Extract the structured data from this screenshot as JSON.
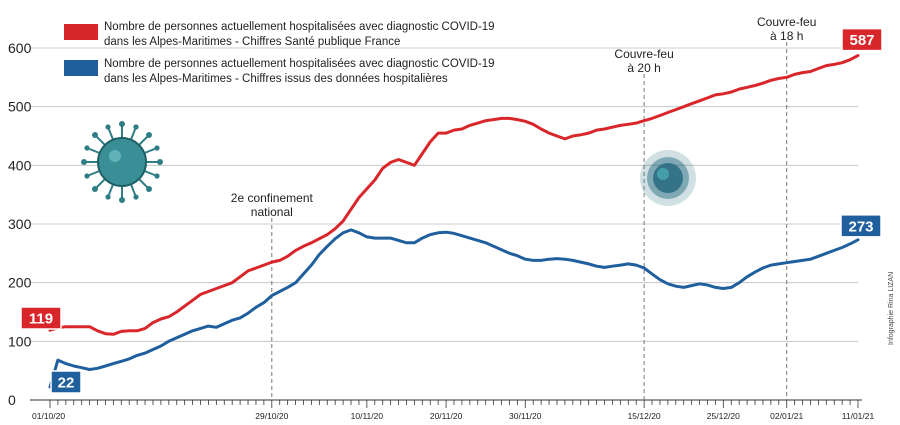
{
  "chart_data": {
    "type": "line",
    "title": "",
    "xlabel": "",
    "ylabel": "",
    "ylim": [
      0,
      600
    ],
    "yticks": [
      0,
      100,
      200,
      300,
      400,
      500,
      600
    ],
    "x": [
      "01/10/20",
      "02/10/20",
      "03/10/20",
      "04/10/20",
      "05/10/20",
      "06/10/20",
      "07/10/20",
      "08/10/20",
      "09/10/20",
      "10/10/20",
      "11/10/20",
      "12/10/20",
      "13/10/20",
      "14/10/20",
      "15/10/20",
      "16/10/20",
      "17/10/20",
      "18/10/20",
      "19/10/20",
      "20/10/20",
      "21/10/20",
      "22/10/20",
      "23/10/20",
      "24/10/20",
      "25/10/20",
      "26/10/20",
      "27/10/20",
      "28/10/20",
      "29/10/20",
      "30/10/20",
      "31/10/20",
      "01/11/20",
      "02/11/20",
      "03/11/20",
      "04/11/20",
      "05/11/20",
      "06/11/20",
      "07/11/20",
      "08/11/20",
      "09/11/20",
      "10/11/20",
      "11/11/20",
      "12/11/20",
      "13/11/20",
      "14/11/20",
      "15/11/20",
      "16/11/20",
      "17/11/20",
      "18/11/20",
      "19/11/20",
      "20/11/20",
      "21/11/20",
      "22/11/20",
      "23/11/20",
      "24/11/20",
      "25/11/20",
      "26/11/20",
      "27/11/20",
      "28/11/20",
      "29/11/20",
      "30/11/20",
      "01/12/20",
      "02/12/20",
      "03/12/20",
      "04/12/20",
      "05/12/20",
      "06/12/20",
      "07/12/20",
      "08/12/20",
      "09/12/20",
      "10/12/20",
      "11/12/20",
      "12/12/20",
      "13/12/20",
      "14/12/20",
      "15/12/20",
      "16/12/20",
      "17/12/20",
      "18/12/20",
      "19/12/20",
      "20/12/20",
      "21/12/20",
      "22/12/20",
      "23/12/20",
      "24/12/20",
      "25/12/20",
      "26/12/20",
      "27/12/20",
      "28/12/20",
      "29/12/20",
      "30/12/20",
      "31/12/20",
      "01/01/21",
      "02/01/21",
      "03/01/21",
      "04/01/21",
      "05/01/21",
      "06/01/21",
      "07/01/21",
      "08/01/21",
      "09/01/21",
      "10/01/21",
      "11/01/21"
    ],
    "xtick_labels": [
      "01/10/20",
      "29/10/20",
      "10/11/20",
      "20/11/20",
      "30/11/20",
      "15/12/20",
      "25/12/20",
      "02/01/21",
      "11/01/21"
    ],
    "series": [
      {
        "name": "Nombre de personnes actuellement hospitalisées avec diagnostic COVID-19 dans les Alpes-Maritimes - Chiffres Santé publique France",
        "color": "#d9262b",
        "values": [
          119,
          123,
          125,
          125,
          125,
          125,
          118,
          113,
          112,
          117,
          118,
          118,
          122,
          132,
          138,
          142,
          150,
          160,
          170,
          180,
          185,
          190,
          195,
          200,
          210,
          220,
          225,
          230,
          235,
          238,
          245,
          255,
          262,
          268,
          275,
          282,
          292,
          305,
          325,
          345,
          360,
          375,
          395,
          405,
          410,
          405,
          400,
          420,
          440,
          455,
          455,
          460,
          462,
          468,
          472,
          476,
          478,
          480,
          480,
          478,
          475,
          470,
          462,
          455,
          450,
          445,
          450,
          452,
          455,
          460,
          462,
          465,
          468,
          470,
          472,
          476,
          480,
          485,
          490,
          495,
          500,
          505,
          510,
          515,
          520,
          522,
          525,
          530,
          533,
          536,
          540,
          545,
          548,
          550,
          555,
          558,
          560,
          565,
          570,
          572,
          575,
          580,
          587
        ]
      },
      {
        "name": "Nombre de personnes actuellement hospitalisées avec diagnostic COVID-19 dans les Alpes-Maritimes - Chiffres issus des données hospitalières",
        "color": "#1f5f9e",
        "values": [
          22,
          68,
          62,
          58,
          55,
          52,
          54,
          58,
          62,
          66,
          70,
          76,
          80,
          86,
          92,
          100,
          106,
          112,
          118,
          122,
          126,
          124,
          130,
          136,
          140,
          148,
          158,
          166,
          178,
          185,
          192,
          200,
          215,
          230,
          248,
          262,
          275,
          285,
          290,
          285,
          278,
          276,
          276,
          276,
          272,
          268,
          268,
          276,
          282,
          285,
          286,
          284,
          280,
          276,
          272,
          268,
          262,
          256,
          250,
          246,
          240,
          238,
          238,
          240,
          241,
          240,
          238,
          235,
          232,
          228,
          226,
          228,
          230,
          232,
          230,
          225,
          215,
          205,
          198,
          194,
          192,
          195,
          198,
          196,
          192,
          190,
          192,
          200,
          210,
          218,
          225,
          230,
          232,
          234,
          236,
          238,
          240,
          245,
          250,
          255,
          260,
          266,
          273
        ]
      }
    ],
    "annotations": [
      {
        "label_line1": "2e confinement",
        "label_line2": "national",
        "x_label": "29/10/20"
      },
      {
        "label_line1": "Couvre-feu",
        "label_line2": "à 20 h",
        "x_label": "15/12/20"
      },
      {
        "label_line1": "Couvre-feu",
        "label_line2": "à 18 h",
        "x_label": "02/01/21"
      }
    ],
    "end_labels": {
      "red_start": "119",
      "red_end": "587",
      "blue_start": "22",
      "blue_end": "273"
    },
    "credit": "Infographie Rina LIZAN",
    "legend_position": "top-left",
    "grid": true
  }
}
